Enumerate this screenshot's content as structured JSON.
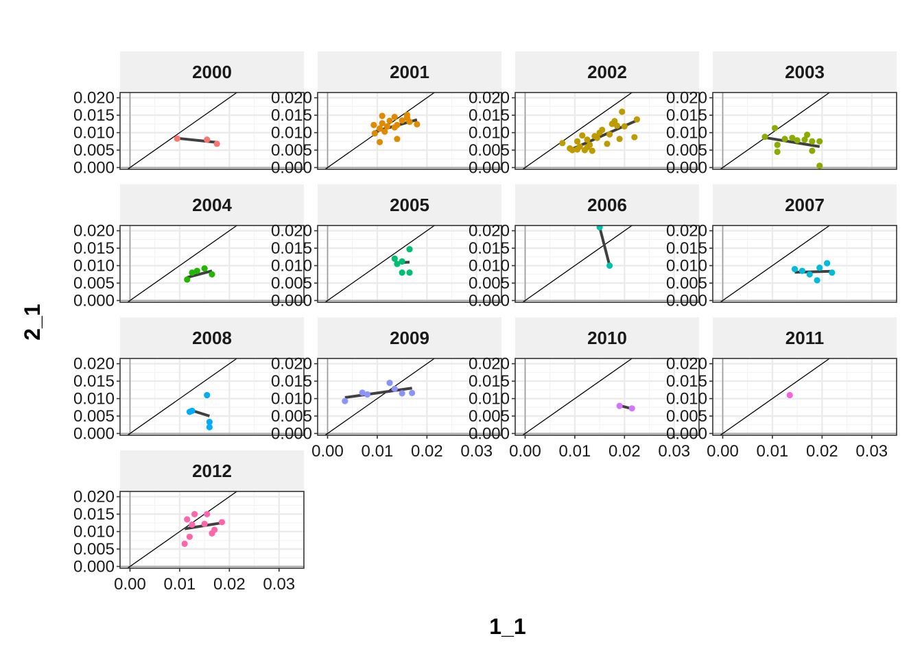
{
  "chart_data": {
    "type": "scatter",
    "subtype": "faceted scatter with linear fit and identity line",
    "xlabel": "1_1",
    "ylabel": "2_1",
    "xlim": [
      -0.002,
      0.035
    ],
    "ylim": [
      -0.0005,
      0.0215
    ],
    "x_ticks": [
      "0.00",
      "0.01",
      "0.02",
      "0.03"
    ],
    "y_ticks": [
      "0.000",
      "0.005",
      "0.010",
      "0.015",
      "0.020"
    ],
    "x_tick_values": [
      0,
      0.01,
      0.02,
      0.03
    ],
    "y_tick_values": [
      0,
      0.005,
      0.01,
      0.015,
      0.02
    ],
    "reference_line": "y = x",
    "fit_color": "#404040",
    "panels": [
      {
        "label": "2000",
        "color": "#F8766D",
        "points": [
          [
            0.0095,
            0.0083
          ],
          [
            0.0155,
            0.008
          ],
          [
            0.0175,
            0.0068
          ]
        ],
        "fit": [
          [
            0.0095,
            0.0084
          ],
          [
            0.0175,
            0.0072
          ]
        ]
      },
      {
        "label": "2001",
        "color": "#E18A00",
        "points": [
          [
            0.0093,
            0.0122
          ],
          [
            0.0095,
            0.0098
          ],
          [
            0.0105,
            0.0112
          ],
          [
            0.011,
            0.0148
          ],
          [
            0.011,
            0.0127
          ],
          [
            0.0115,
            0.0103
          ],
          [
            0.012,
            0.0118
          ],
          [
            0.0125,
            0.0134
          ],
          [
            0.0135,
            0.0145
          ],
          [
            0.0135,
            0.0115
          ],
          [
            0.014,
            0.0122
          ],
          [
            0.015,
            0.0135
          ],
          [
            0.016,
            0.0151
          ],
          [
            0.016,
            0.0142
          ],
          [
            0.0165,
            0.0131
          ],
          [
            0.018,
            0.0124
          ],
          [
            0.0105,
            0.0073
          ],
          [
            0.014,
            0.0082
          ]
        ],
        "fit": [
          [
            0.0093,
            0.0102
          ],
          [
            0.018,
            0.0137
          ]
        ]
      },
      {
        "label": "2002",
        "color": "#BE9C00",
        "points": [
          [
            0.0075,
            0.007
          ],
          [
            0.009,
            0.0055
          ],
          [
            0.0095,
            0.005
          ],
          [
            0.0105,
            0.0075
          ],
          [
            0.011,
            0.006
          ],
          [
            0.0115,
            0.0092
          ],
          [
            0.012,
            0.005
          ],
          [
            0.0125,
            0.008
          ],
          [
            0.013,
            0.0065
          ],
          [
            0.0135,
            0.0048
          ],
          [
            0.014,
            0.009
          ],
          [
            0.0145,
            0.0085
          ],
          [
            0.015,
            0.01
          ],
          [
            0.0155,
            0.0108
          ],
          [
            0.0165,
            0.0068
          ],
          [
            0.017,
            0.0095
          ],
          [
            0.0175,
            0.0125
          ],
          [
            0.018,
            0.0133
          ],
          [
            0.0185,
            0.012
          ],
          [
            0.019,
            0.0082
          ],
          [
            0.0195,
            0.016
          ],
          [
            0.02,
            0.0118
          ],
          [
            0.022,
            0.0087
          ],
          [
            0.0225,
            0.0138
          ],
          [
            0.0105,
            0.0052
          ],
          [
            0.0125,
            0.0058
          ]
        ],
        "fit": [
          [
            0.009,
            0.005
          ],
          [
            0.0225,
            0.0135
          ]
        ]
      },
      {
        "label": "2003",
        "color": "#8CAB00",
        "points": [
          [
            0.0085,
            0.0088
          ],
          [
            0.0105,
            0.0113
          ],
          [
            0.011,
            0.0065
          ],
          [
            0.011,
            0.0045
          ],
          [
            0.0125,
            0.0082
          ],
          [
            0.014,
            0.0085
          ],
          [
            0.015,
            0.0078
          ],
          [
            0.0165,
            0.008
          ],
          [
            0.017,
            0.0094
          ],
          [
            0.018,
            0.0075
          ],
          [
            0.018,
            0.0048
          ],
          [
            0.0195,
            0.0075
          ],
          [
            0.0195,
            0.0005
          ]
        ],
        "fit": [
          [
            0.0085,
            0.0086
          ],
          [
            0.0195,
            0.006
          ]
        ]
      },
      {
        "label": "2004",
        "color": "#24B700",
        "points": [
          [
            0.0115,
            0.006
          ],
          [
            0.0125,
            0.008
          ],
          [
            0.0135,
            0.0085
          ],
          [
            0.015,
            0.0092
          ],
          [
            0.0165,
            0.0075
          ]
        ],
        "fit": [
          [
            0.0115,
            0.0066
          ],
          [
            0.0165,
            0.0085
          ]
        ]
      },
      {
        "label": "2005",
        "color": "#00BE70",
        "points": [
          [
            0.0135,
            0.012
          ],
          [
            0.014,
            0.0105
          ],
          [
            0.015,
            0.008
          ],
          [
            0.015,
            0.0112
          ],
          [
            0.0165,
            0.0147
          ],
          [
            0.0165,
            0.008
          ]
        ],
        "fit": [
          [
            0.0135,
            0.0108
          ],
          [
            0.0165,
            0.011
          ]
        ]
      },
      {
        "label": "2006",
        "color": "#00C1AB",
        "points": [
          [
            0.015,
            0.021
          ],
          [
            0.017,
            0.01
          ]
        ],
        "fit": [
          [
            0.015,
            0.021
          ],
          [
            0.017,
            0.01
          ]
        ]
      },
      {
        "label": "2007",
        "color": "#00BBDA",
        "points": [
          [
            0.0145,
            0.009
          ],
          [
            0.016,
            0.0085
          ],
          [
            0.0175,
            0.0075
          ],
          [
            0.019,
            0.0058
          ],
          [
            0.0195,
            0.0094
          ],
          [
            0.021,
            0.0107
          ],
          [
            0.022,
            0.008
          ]
        ],
        "fit": [
          [
            0.0145,
            0.0081
          ],
          [
            0.022,
            0.0084
          ]
        ]
      },
      {
        "label": "2008",
        "color": "#00ACFC",
        "points": [
          [
            0.012,
            0.0062
          ],
          [
            0.0125,
            0.0065
          ],
          [
            0.0155,
            0.011
          ],
          [
            0.016,
            0.0033
          ],
          [
            0.016,
            0.0018
          ]
        ],
        "fit": [
          [
            0.012,
            0.0068
          ],
          [
            0.016,
            0.005
          ]
        ]
      },
      {
        "label": "2009",
        "color": "#8B93FF",
        "points": [
          [
            0.0035,
            0.0093
          ],
          [
            0.007,
            0.0117
          ],
          [
            0.008,
            0.0112
          ],
          [
            0.0125,
            0.0145
          ],
          [
            0.0135,
            0.0128
          ],
          [
            0.015,
            0.0115
          ],
          [
            0.017,
            0.0116
          ]
        ],
        "fit": [
          [
            0.0035,
            0.0103
          ],
          [
            0.017,
            0.013
          ]
        ]
      },
      {
        "label": "2010",
        "color": "#D575FE",
        "points": [
          [
            0.019,
            0.0079
          ],
          [
            0.0215,
            0.0072
          ]
        ],
        "fit": [
          [
            0.019,
            0.008
          ],
          [
            0.0215,
            0.0071
          ]
        ]
      },
      {
        "label": "2011",
        "color": "#F962DD",
        "points": [
          [
            0.0135,
            0.011
          ]
        ],
        "fit": null
      },
      {
        "label": "2012",
        "color": "#FF65AC",
        "points": [
          [
            0.011,
            0.0065
          ],
          [
            0.0115,
            0.0135
          ],
          [
            0.012,
            0.0085
          ],
          [
            0.0125,
            0.012
          ],
          [
            0.013,
            0.015
          ],
          [
            0.015,
            0.0122
          ],
          [
            0.0155,
            0.015
          ],
          [
            0.0165,
            0.0095
          ],
          [
            0.017,
            0.0105
          ],
          [
            0.0185,
            0.0127
          ]
        ],
        "fit": [
          [
            0.011,
            0.0108
          ],
          [
            0.0185,
            0.0125
          ]
        ]
      }
    ]
  }
}
